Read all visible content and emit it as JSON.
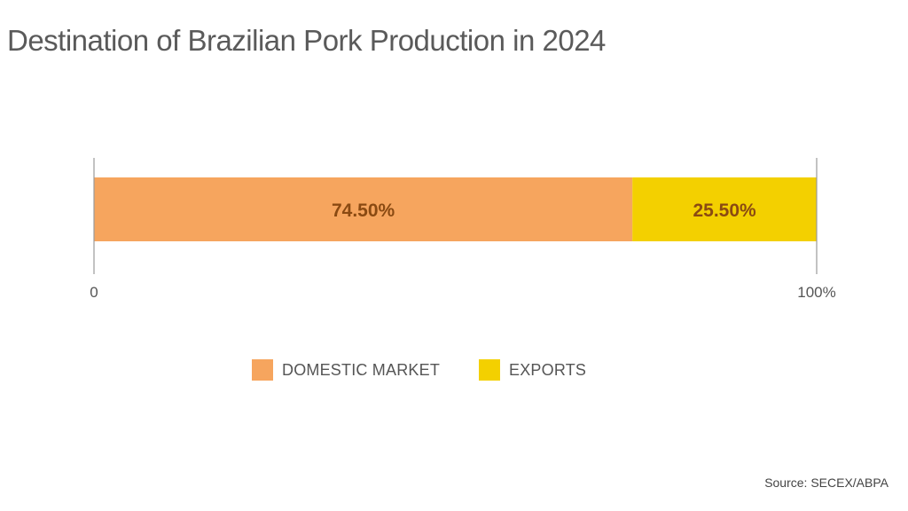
{
  "chart_data": {
    "type": "bar",
    "orientation": "horizontal",
    "stacked": true,
    "title": "Destination of Brazilian Pork Production in 2024",
    "series": [
      {
        "name": "DOMESTIC MARKET",
        "value": 74.5,
        "label": "74.50%",
        "color": "#f6a55e"
      },
      {
        "name": "EXPORTS",
        "value": 25.5,
        "label": "25.50%",
        "color": "#f3d000"
      }
    ],
    "xlim": [
      0,
      100
    ],
    "tick_labels": [
      "0",
      "100%"
    ],
    "grid": false,
    "legend_position": "bottom"
  },
  "source": "Source: SECEX/ABPA"
}
